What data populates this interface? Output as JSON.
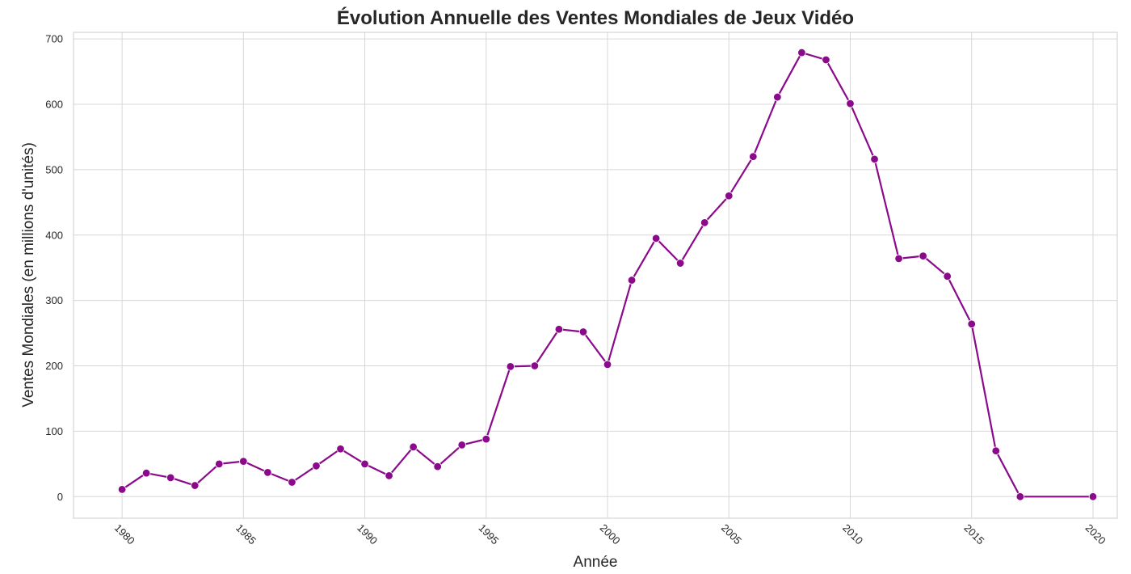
{
  "chart_data": {
    "type": "line",
    "title": "Évolution Annuelle des Ventes Mondiales de Jeux Vidéo",
    "xlabel": "Année",
    "ylabel": "Ventes Mondiales (en millions d'unités)",
    "xlim": [
      1978,
      2021
    ],
    "ylim": [
      -33,
      710
    ],
    "grid": true,
    "legend": "none",
    "x_ticks": [
      1980,
      1985,
      1990,
      1995,
      2000,
      2005,
      2010,
      2015,
      2020
    ],
    "x_tick_labels": [
      "1980",
      "1985",
      "1990",
      "1995",
      "2000",
      "2005",
      "2010",
      "2015",
      "2020"
    ],
    "y_ticks": [
      0,
      100,
      200,
      300,
      400,
      500,
      600,
      700
    ],
    "y_tick_labels": [
      "0",
      "100",
      "200",
      "300",
      "400",
      "500",
      "600",
      "700"
    ],
    "colors": {
      "line": "#8b0a8b",
      "marker": "#8b0a8b",
      "marker_edge": "#ffffff"
    },
    "series": [
      {
        "x": [
          1980,
          1981,
          1982,
          1983,
          1984,
          1985,
          1986,
          1987,
          1988,
          1989,
          1990,
          1991,
          1992,
          1993,
          1994,
          1995,
          1996,
          1997,
          1998,
          1999,
          2000,
          2001,
          2002,
          2003,
          2004,
          2005,
          2006,
          2007,
          2008,
          2009,
          2010,
          2011,
          2012,
          2013,
          2014,
          2015,
          2016,
          2017,
          2020
        ],
        "values": [
          11,
          36,
          29,
          17,
          50,
          54,
          37,
          22,
          47,
          73,
          50,
          32,
          76,
          46,
          79,
          88,
          199,
          200,
          256,
          252,
          202,
          331,
          395,
          357,
          419,
          460,
          520,
          611,
          679,
          668,
          601,
          516,
          364,
          368,
          337,
          264,
          70,
          0,
          0
        ]
      }
    ]
  }
}
